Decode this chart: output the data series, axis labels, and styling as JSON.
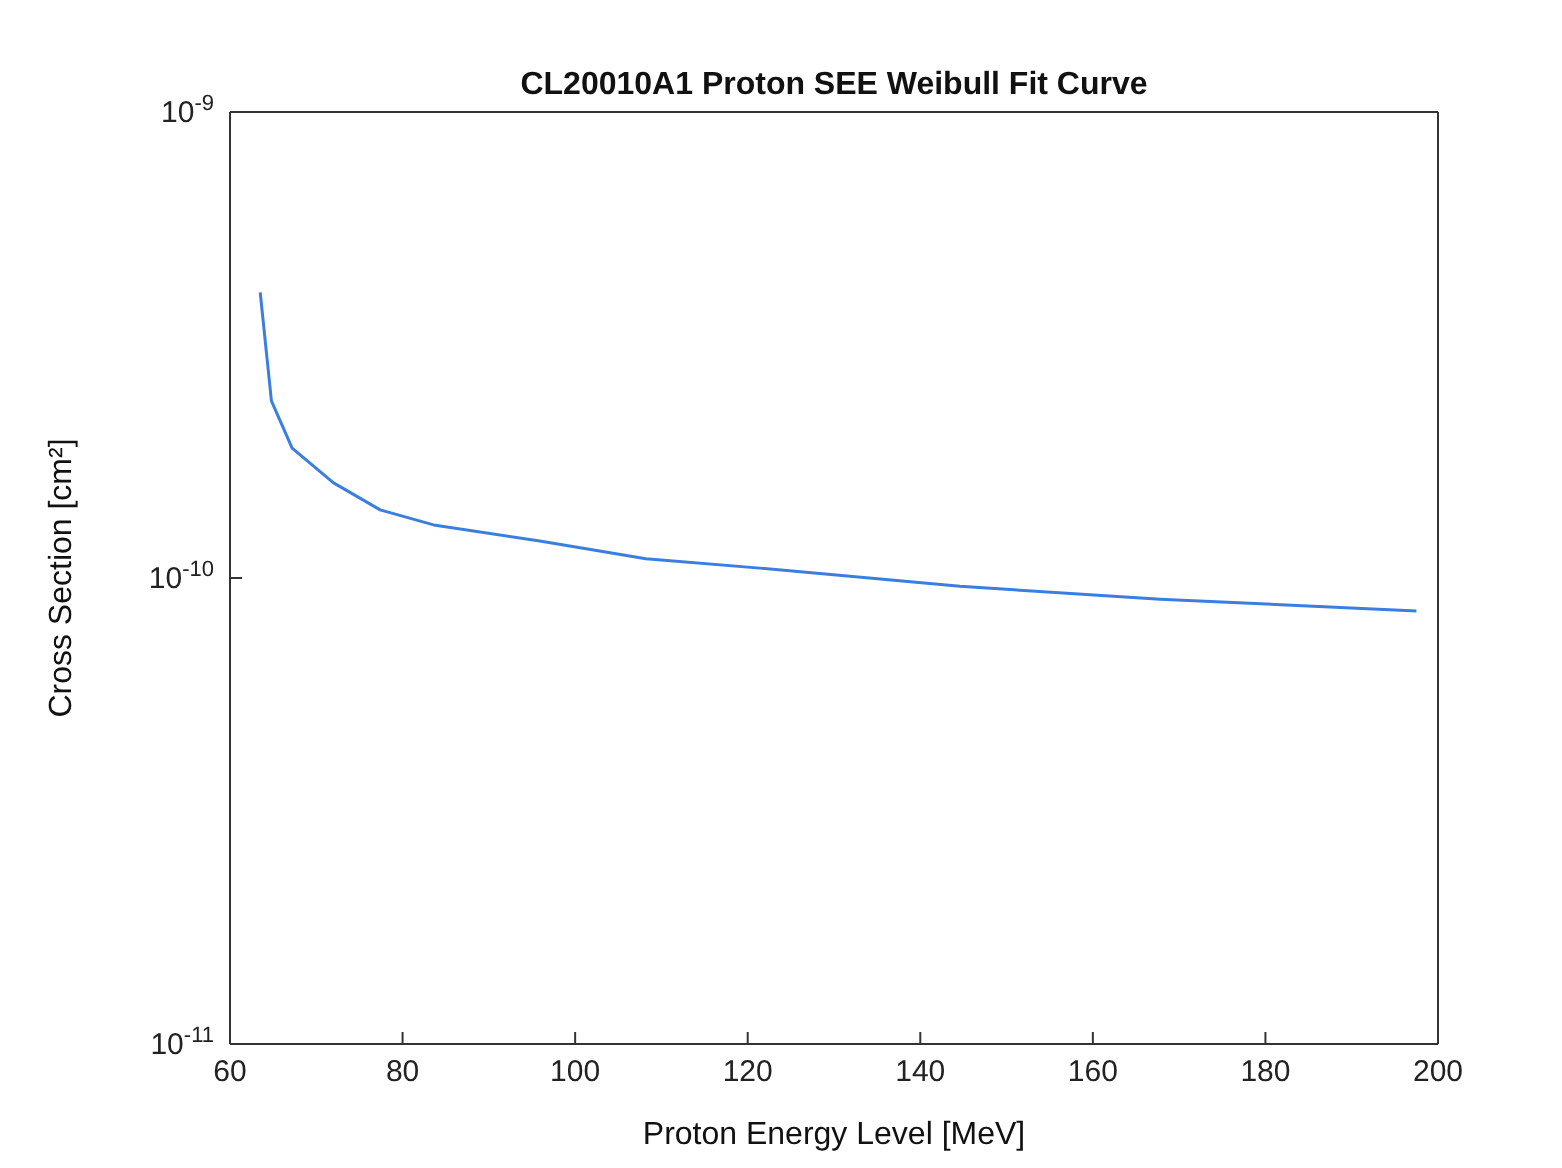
{
  "chart_data": {
    "type": "line",
    "title": "CL20010A1 Proton SEE Weibull Fit Curve",
    "xlabel": "Proton Energy Level [MeV]",
    "ylabel": "Cross Section [cm²]",
    "log": "y",
    "xlim": [
      60,
      200
    ],
    "xticks": [
      60,
      80,
      100,
      120,
      140,
      160,
      180,
      200
    ],
    "ylim": [
      1e-11,
      1e-09
    ],
    "yticks": [
      {
        "value": 1e-11,
        "label": "10$^{-11}$"
      },
      {
        "value": 1e-10,
        "label": "10$^{-10}$"
      },
      {
        "value": 1e-09,
        "label": "10$^{-9}$"
      }
    ],
    "grid": false,
    "marker": "none",
    "line_style": "solid",
    "series": [
      {
        "color": "#3a7ee0",
        "x": [
          63.5,
          64.8,
          67.2,
          72,
          77.4,
          83.6,
          95.9,
          108.2,
          121.4,
          144.6,
          167.8,
          197.5
        ],
        "values": [
          4.1e-10,
          2.4e-10,
          1.9e-10,
          1.6e-10,
          1.4e-10,
          1.3e-10,
          1.2e-10,
          1.1e-10,
          1.05e-10,
          9.6e-11,
          9e-11,
          8.5e-11
        ]
      }
    ]
  }
}
